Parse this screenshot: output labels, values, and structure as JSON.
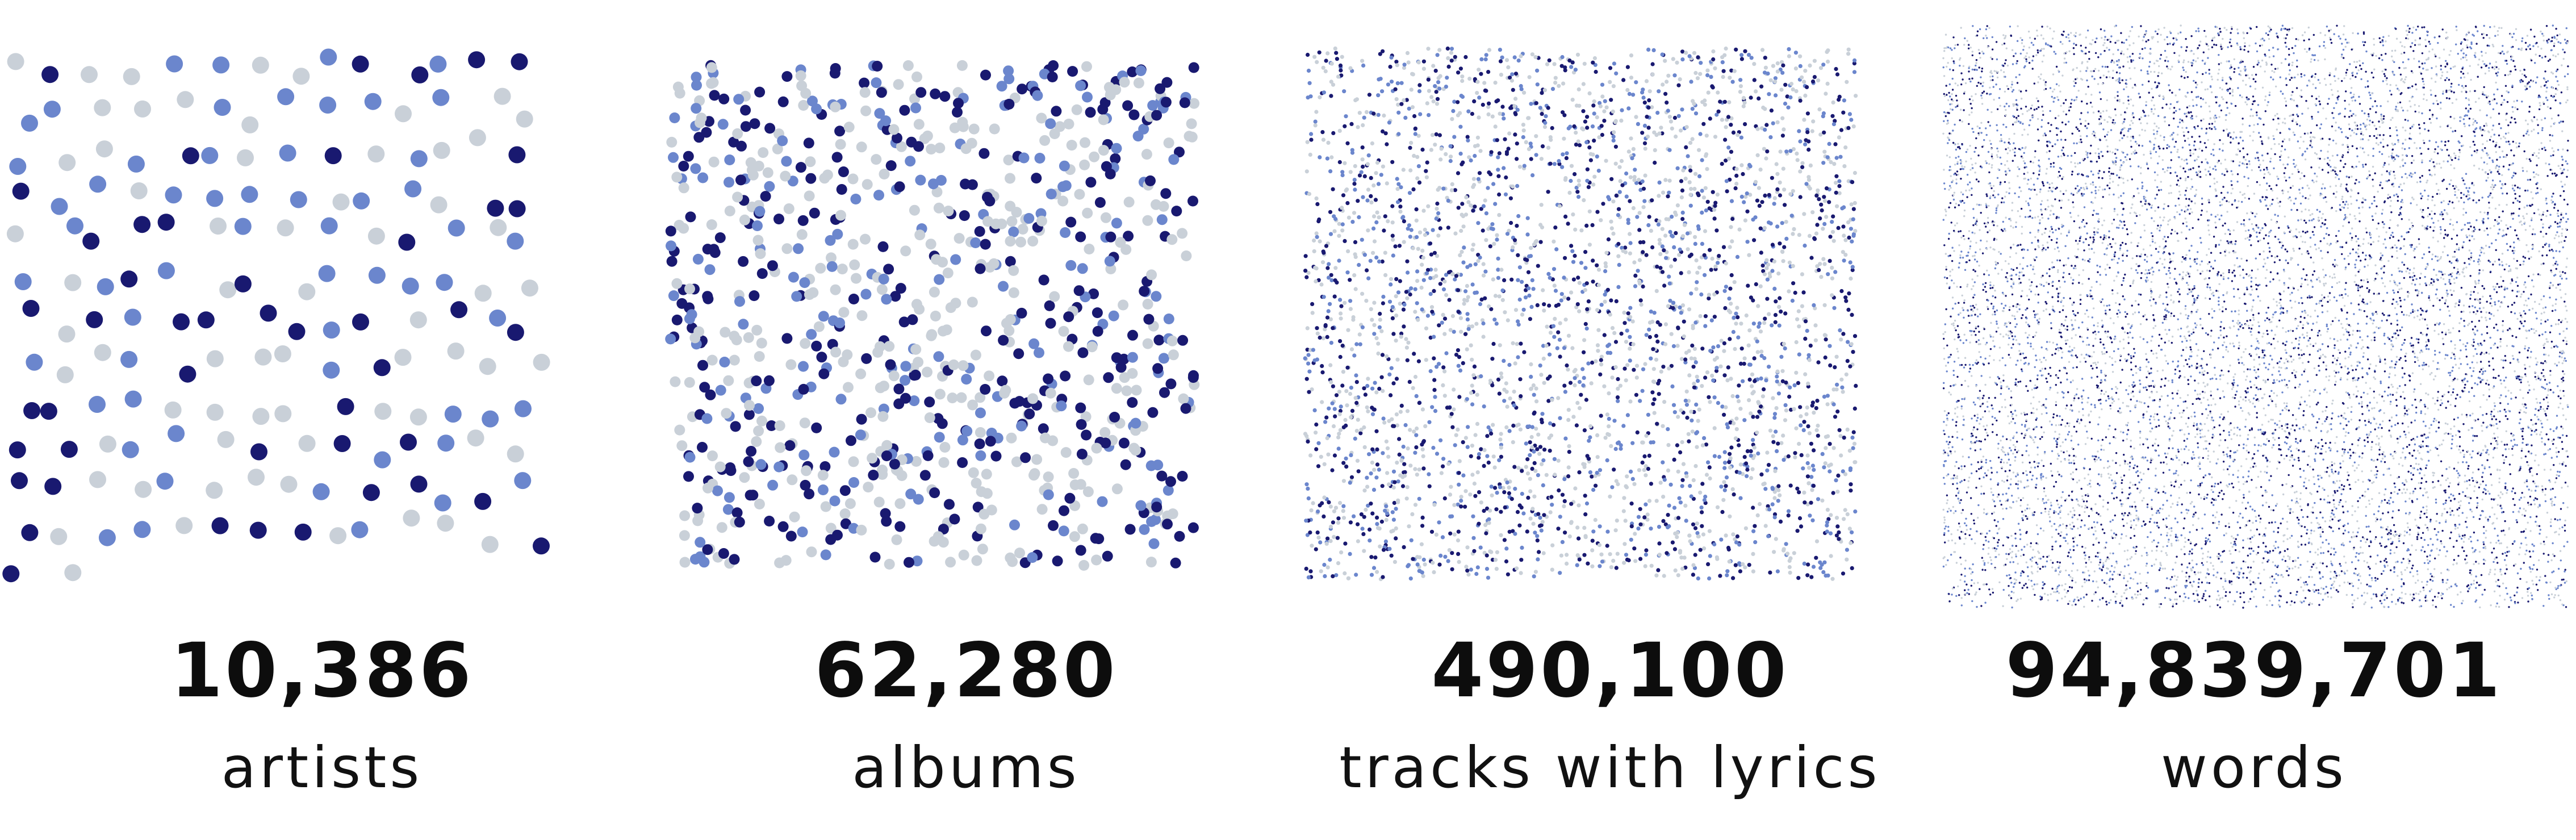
{
  "colors": {
    "navy": "#191970",
    "mid_blue": "#6B86CD",
    "light_gray": "#C9D0D8",
    "text": "#0d0d0d"
  },
  "stats": [
    {
      "number": "10,386",
      "label": "artists"
    },
    {
      "number": "62,280",
      "label": "albums"
    },
    {
      "number": "490,100",
      "label": "tracks with lyrics"
    },
    {
      "number": "94,839,701",
      "label": "words"
    }
  ]
}
